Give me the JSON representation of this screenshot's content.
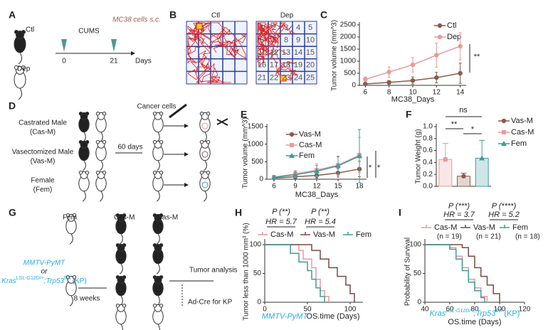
{
  "panel_labels": [
    "A",
    "B",
    "C",
    "D",
    "E",
    "F",
    "G",
    "H",
    "I"
  ],
  "panel_a": {
    "groups": [
      "Ctl",
      "Dep"
    ],
    "treatment": "CUMS",
    "injection": "MC38 cells s.c.",
    "timepoints": [
      "0",
      "21"
    ],
    "unit": "Days"
  },
  "panel_b": {
    "titles": [
      "Ctl",
      "Dep"
    ],
    "zones": [
      "1",
      "2",
      "3",
      "4",
      "5",
      "6",
      "7",
      "8",
      "9",
      "10",
      "11",
      "12",
      "13",
      "14",
      "15",
      "16",
      "17",
      "18",
      "19",
      "20",
      "21",
      "22",
      "23",
      "24",
      "25"
    ]
  },
  "panel_d": {
    "groups": [
      {
        "name": "Castrated Male",
        "abbr": "(Cas-M)"
      },
      {
        "name": "Vasectomized Male",
        "abbr": "(Vas-M)"
      },
      {
        "name": "Female",
        "abbr": "(Fem)"
      }
    ],
    "interval": "60 days",
    "injection": "Cancer cells"
  },
  "panel_g": {
    "groups": [
      "Fem",
      "Cas-M",
      "Vas-M"
    ],
    "model_1": "MMTV-PyMT",
    "or": "or",
    "model_2": [
      "Kras",
      "LSL-G12D/+",
      ";Trp53",
      "fl/fl",
      " (KP)"
    ],
    "interval": "8 weeks",
    "outcome": "Tumor analysis",
    "note": "Ad-Cre for KP"
  },
  "chart_data": [
    {
      "type": "line",
      "xlabel": "MC38_Days",
      "ylabel": "Tumor volume (mm^3)",
      "xlim": [
        5.5,
        14.5
      ],
      "xticks": [
        6,
        8,
        10,
        12,
        14
      ],
      "ylim": [
        0,
        2500
      ],
      "yticks": [
        0,
        500,
        1000,
        1500,
        2000,
        2500
      ],
      "x": [
        6,
        8,
        10,
        12,
        14
      ],
      "series": [
        {
          "name": "Ctl",
          "color": "#8c5a4b",
          "marker": "circle",
          "values": [
            60,
            120,
            200,
            320,
            500
          ],
          "errors": [
            40,
            80,
            150,
            220,
            420
          ]
        },
        {
          "name": "Dep",
          "color": "#e89a9a",
          "marker": "circle",
          "values": [
            250,
            550,
            850,
            1250,
            1620
          ],
          "errors": [
            100,
            220,
            300,
            500,
            560
          ]
        }
      ],
      "annotations": [
        "**"
      ]
    },
    {
      "type": "line",
      "xlabel": "MC38_Days",
      "ylabel": "Tumor volume (mm^3)",
      "xlim": [
        5,
        19
      ],
      "xticks": [
        6,
        9,
        12,
        15,
        18
      ],
      "ylim": [
        0,
        1500
      ],
      "yticks": [
        0,
        500,
        1000,
        1500
      ],
      "x": [
        6,
        9,
        12,
        15,
        18
      ],
      "series": [
        {
          "name": "Vas-M",
          "color": "#8c5a4b",
          "marker": "circle",
          "values": [
            30,
            70,
            110,
            180,
            290
          ],
          "errors": [
            20,
            50,
            80,
            120,
            220
          ]
        },
        {
          "name": "Cas-M",
          "color": "#e89a9a",
          "marker": "square",
          "values": [
            60,
            150,
            260,
            400,
            690
          ],
          "errors": [
            40,
            100,
            180,
            260,
            500
          ]
        },
        {
          "name": "Fem",
          "color": "#3f9c9c",
          "marker": "triangle",
          "values": [
            50,
            130,
            230,
            380,
            660
          ],
          "errors": [
            40,
            90,
            160,
            260,
            760
          ]
        }
      ],
      "annotations": [
        "*",
        "*"
      ]
    },
    {
      "type": "bar",
      "ylabel": "Tumor Weight (g)",
      "ylim": [
        0,
        1.0
      ],
      "yticks": [
        {
          "value": 0,
          "label": "0.0"
        },
        0.2,
        0.4,
        0.6,
        0.8,
        {
          "value": 1.0,
          "label": "1.0"
        }
      ],
      "series": [
        {
          "name": "Vas-M",
          "color": "#8c5a4b",
          "marker": "circle",
          "values": [
            0.17
          ],
          "errors": [
            0.05
          ]
        },
        {
          "name": "Cas-M",
          "color": "#e89a9a",
          "marker": "square",
          "values": [
            0.45
          ],
          "errors": [
            0.27
          ]
        },
        {
          "name": "Fem",
          "color": "#3f9c9c",
          "marker": "triangle",
          "values": [
            0.47
          ],
          "errors": [
            0.3
          ]
        }
      ],
      "annotations": [
        "ns",
        "**",
        "*"
      ]
    },
    {
      "type": "step",
      "subtitle": [
        "MMTV-PyMT"
      ],
      "xlabel": "OS.time (Days)",
      "ylabel": "Tumor less than 1000 mm³ (%)",
      "xlim": [
        0,
        115
      ],
      "xticks": [
        0,
        50,
        100
      ],
      "ylim": [
        0,
        105
      ],
      "yticks": [
        0,
        50,
        100
      ],
      "series": [
        {
          "name": "Cas-M",
          "color": "#e89a9a",
          "x": [
            0,
            40,
            45,
            55,
            60,
            65,
            70,
            75
          ],
          "values": [
            100,
            90,
            75,
            60,
            40,
            20,
            10,
            0
          ]
        },
        {
          "name": "Vas-M",
          "color": "#7b4a3d",
          "x": [
            0,
            55,
            65,
            75,
            85,
            95,
            100,
            105
          ],
          "values": [
            100,
            90,
            75,
            60,
            45,
            30,
            15,
            0
          ]
        },
        {
          "name": "Fem",
          "color": "#3f9c9c",
          "x": [
            0,
            30,
            40,
            50,
            55,
            60,
            65,
            70
          ],
          "values": [
            100,
            85,
            70,
            55,
            40,
            25,
            10,
            0
          ]
        }
      ],
      "annotations": [
        "P (**)",
        "HR = 5.7",
        "P (**)",
        "HR = 5.4"
      ]
    },
    {
      "type": "step",
      "subtitle": [
        "Kras",
        "LSL-G12D/+",
        ";Trp53",
        "fl/fl",
        " (KP)"
      ],
      "xlabel": "OS.time (Days)",
      "ylabel": "Probability of Survival",
      "xlim": [
        40,
        120
      ],
      "xticks": [
        40,
        60,
        80,
        100,
        120
      ],
      "ylim": [
        0,
        105
      ],
      "yticks": [
        0,
        50,
        100
      ],
      "series": [
        {
          "name": "Cas-M",
          "n_label": "(n = 19)",
          "color": "#e89a9a",
          "x": [
            40,
            60,
            65,
            70,
            75,
            80,
            85,
            90
          ],
          "values": [
            100,
            95,
            80,
            60,
            40,
            25,
            10,
            0
          ]
        },
        {
          "name": "Vas-M",
          "n_label": "(n = 21)",
          "color": "#7b4a3d",
          "x": [
            40,
            70,
            75,
            80,
            85,
            90,
            95,
            100
          ],
          "values": [
            100,
            95,
            80,
            60,
            45,
            30,
            15,
            0
          ]
        },
        {
          "name": "Fem",
          "n_label": "(n = 18)",
          "color": "#3f9c9c",
          "x": [
            40,
            60,
            65,
            70,
            75,
            80,
            85,
            88
          ],
          "values": [
            100,
            92,
            75,
            55,
            35,
            20,
            8,
            0
          ]
        }
      ],
      "annotations": [
        "P (***)",
        "HR = 3.7",
        "P (****)",
        "HR = 5.2"
      ]
    }
  ]
}
